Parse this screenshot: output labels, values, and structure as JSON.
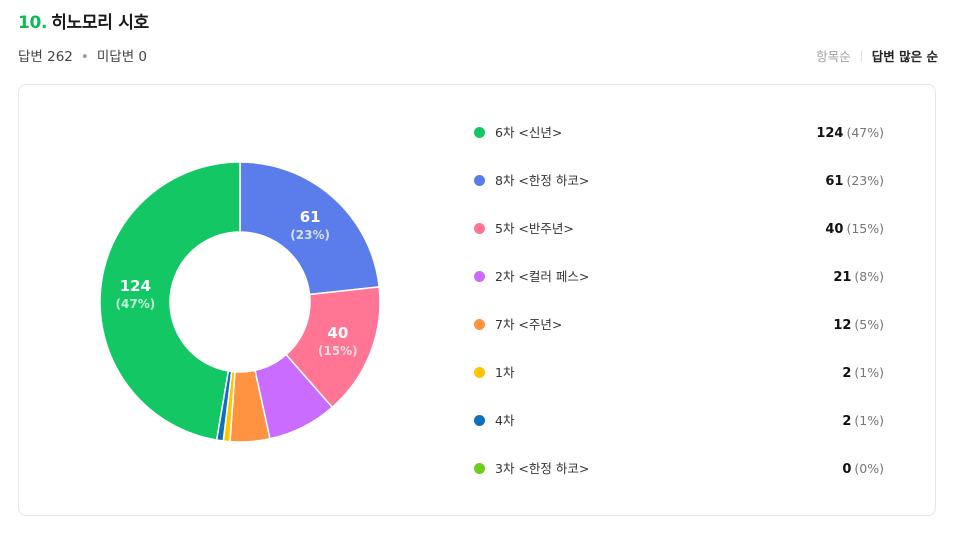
{
  "question": {
    "number": "10.",
    "title": "히노모리 시호"
  },
  "stats": {
    "answered": "답변 262",
    "separator": "•",
    "unanswered": "미답변 0"
  },
  "sort": {
    "by_item": "항목순",
    "by_answers": "답변 많은 순"
  },
  "colors": {
    "accent": "#0fba55",
    "slices": [
      "#12c764",
      "#5a7deb",
      "#ff7593",
      "#c96cff",
      "#ff9341",
      "#ffc600",
      "#0f6ebd",
      "#6fcc1b"
    ]
  },
  "chart_data": {
    "type": "pie",
    "style": "donut",
    "total": 262,
    "categories": [
      "6차 <신년>",
      "8차 <한정 하코>",
      "5차 <반주년>",
      "2차 <컬러 페스>",
      "7차 <주년>",
      "1차",
      "4차",
      "3차 <한정 하코>"
    ],
    "values": [
      124,
      61,
      40,
      21,
      12,
      2,
      2,
      0
    ],
    "percent_labels": [
      "(47%)",
      "(23%)",
      "(15%)",
      "(8%)",
      "(5%)",
      "(1%)",
      "(1%)",
      "(0%)"
    ],
    "slice_order": [
      1,
      2,
      3,
      4,
      5,
      6,
      7,
      0
    ],
    "inner_labels": [
      {
        "value": "124",
        "pct": "(47%)"
      },
      {
        "value": "61",
        "pct": "(23%)"
      },
      {
        "value": "40",
        "pct": "(15%)"
      }
    ],
    "legend_position": "right"
  }
}
